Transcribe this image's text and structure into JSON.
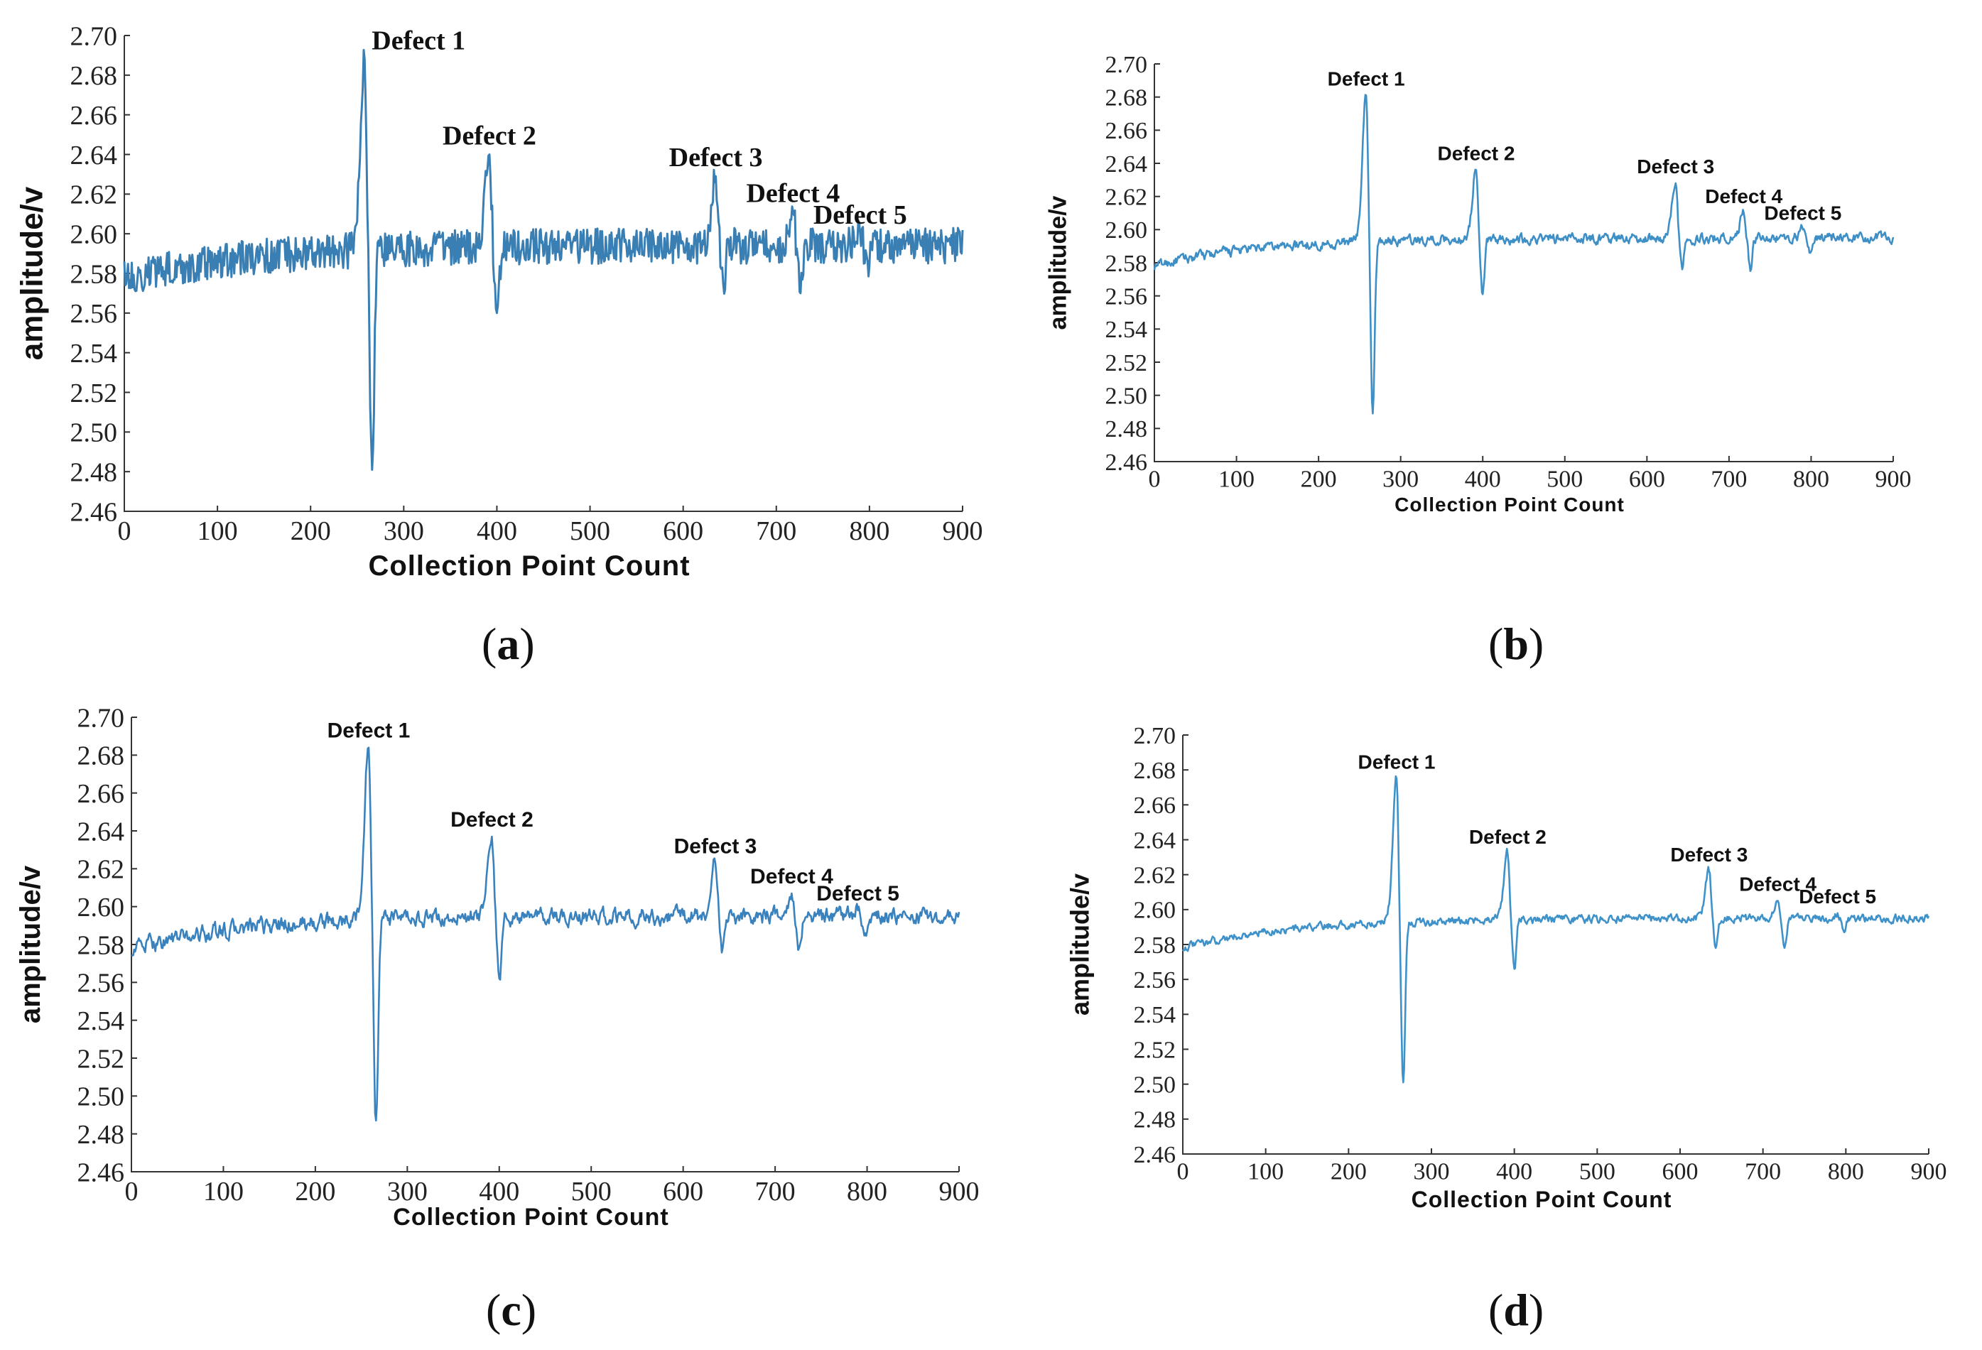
{
  "chart_data": [
    {
      "panel": "a",
      "type": "line",
      "caption": "a",
      "xlabel": "Collection Point Count",
      "ylabel": "amplitude/v",
      "xlim": [
        0,
        900
      ],
      "ylim": [
        2.46,
        2.7
      ],
      "xticks": [
        "0",
        "100",
        "200",
        "300",
        "400",
        "500",
        "600",
        "700",
        "800",
        "900"
      ],
      "yticks": [
        "2.46",
        "2.48",
        "2.50",
        "2.52",
        "2.54",
        "2.56",
        "2.58",
        "2.60",
        "2.62",
        "2.64",
        "2.66",
        "2.68",
        "2.70"
      ],
      "color": "#3a7fb3",
      "noise": 0.01,
      "annotations": [
        {
          "text": "Defect 1",
          "x": 258,
          "y": 2.688
        },
        {
          "text": "Defect 2",
          "x": 392,
          "y": 2.64
        },
        {
          "text": "Defect 3",
          "x": 635,
          "y": 2.629
        },
        {
          "text": "Defect 4",
          "x": 718,
          "y": 2.611
        },
        {
          "text": "Defect 5",
          "x": 790,
          "y": 2.6
        }
      ],
      "defects": [
        {
          "x": 258,
          "peak": 2.688,
          "trough": 2.481
        },
        {
          "x": 392,
          "peak": 2.64,
          "trough": 2.56
        },
        {
          "x": 635,
          "peak": 2.629,
          "trough": 2.575
        },
        {
          "x": 718,
          "peak": 2.611,
          "trough": 2.57
        },
        {
          "x": 790,
          "peak": 2.6,
          "trough": 2.586
        }
      ]
    },
    {
      "panel": "b",
      "type": "line",
      "caption": "b",
      "xlabel": "Collection Point Count",
      "ylabel": "amplitude/v",
      "xlim": [
        0,
        900
      ],
      "ylim": [
        2.46,
        2.7
      ],
      "xticks": [
        "0",
        "100",
        "200",
        "300",
        "400",
        "500",
        "600",
        "700",
        "800",
        "900"
      ],
      "yticks": [
        "2.46",
        "2.48",
        "2.50",
        "2.52",
        "2.54",
        "2.56",
        "2.58",
        "2.60",
        "2.62",
        "2.64",
        "2.66",
        "2.68",
        "2.70"
      ],
      "color": "#3f8fc7",
      "noise": 0.004,
      "annotations": [
        {
          "text": "Defect 1",
          "x": 258,
          "y": 2.681
        },
        {
          "text": "Defect 2",
          "x": 392,
          "y": 2.636
        },
        {
          "text": "Defect 3",
          "x": 635,
          "y": 2.628
        },
        {
          "text": "Defect 4",
          "x": 718,
          "y": 2.61
        },
        {
          "text": "Defect 5",
          "x": 790,
          "y": 2.6
        }
      ],
      "defects": [
        {
          "x": 258,
          "peak": 2.681,
          "trough": 2.489
        },
        {
          "x": 392,
          "peak": 2.636,
          "trough": 2.561
        },
        {
          "x": 635,
          "peak": 2.628,
          "trough": 2.576
        },
        {
          "x": 718,
          "peak": 2.61,
          "trough": 2.575
        },
        {
          "x": 790,
          "peak": 2.6,
          "trough": 2.586
        }
      ]
    },
    {
      "panel": "c",
      "type": "line",
      "caption": "c",
      "xlabel": "Collection Point Count",
      "ylabel": "amplitude/v",
      "xlim": [
        0,
        900
      ],
      "ylim": [
        2.46,
        2.7
      ],
      "xticks": [
        "0",
        "100",
        "200",
        "300",
        "400",
        "500",
        "600",
        "700",
        "800",
        "900"
      ],
      "yticks": [
        "2.46",
        "2.48",
        "2.50",
        "2.52",
        "2.54",
        "2.56",
        "2.58",
        "2.60",
        "2.62",
        "2.64",
        "2.66",
        "2.68",
        "2.70"
      ],
      "color": "#3a82bd",
      "noise": 0.006,
      "annotations": [
        {
          "text": "Defect 1",
          "x": 258,
          "y": 2.684
        },
        {
          "text": "Defect 2",
          "x": 392,
          "y": 2.637
        },
        {
          "text": "Defect 3",
          "x": 635,
          "y": 2.623
        },
        {
          "text": "Defect 4",
          "x": 718,
          "y": 2.607
        },
        {
          "text": "Defect 5",
          "x": 790,
          "y": 2.598
        }
      ],
      "defects": [
        {
          "x": 258,
          "peak": 2.684,
          "trough": 2.487
        },
        {
          "x": 392,
          "peak": 2.637,
          "trough": 2.562
        },
        {
          "x": 635,
          "peak": 2.623,
          "trough": 2.578
        },
        {
          "x": 718,
          "peak": 2.607,
          "trough": 2.578
        },
        {
          "x": 790,
          "peak": 2.598,
          "trough": 2.586
        }
      ]
    },
    {
      "panel": "d",
      "type": "line",
      "caption": "d",
      "xlabel": "Collection Point Count",
      "ylabel": "amplitude/v",
      "xlim": [
        0,
        900
      ],
      "ylim": [
        2.46,
        2.7
      ],
      "xticks": [
        "0",
        "100",
        "200",
        "300",
        "400",
        "500",
        "600",
        "700",
        "800",
        "900"
      ],
      "yticks": [
        "2.46",
        "2.48",
        "2.50",
        "2.52",
        "2.54",
        "2.56",
        "2.58",
        "2.60",
        "2.62",
        "2.64",
        "2.66",
        "2.68",
        "2.70"
      ],
      "color": "#3f92c9",
      "noise": 0.003,
      "annotations": [
        {
          "text": "Defect 1",
          "x": 258,
          "y": 2.675
        },
        {
          "text": "Defect 2",
          "x": 392,
          "y": 2.632
        },
        {
          "text": "Defect 3",
          "x": 635,
          "y": 2.622
        },
        {
          "text": "Defect 4",
          "x": 718,
          "y": 2.605
        },
        {
          "text": "Defect 5",
          "x": 790,
          "y": 2.598
        }
      ],
      "defects": [
        {
          "x": 258,
          "peak": 2.675,
          "trough": 2.501
        },
        {
          "x": 392,
          "peak": 2.632,
          "trough": 2.566
        },
        {
          "x": 635,
          "peak": 2.622,
          "trough": 2.578
        },
        {
          "x": 718,
          "peak": 2.605,
          "trough": 2.578
        },
        {
          "x": 790,
          "peak": 2.598,
          "trough": 2.587
        }
      ]
    }
  ]
}
